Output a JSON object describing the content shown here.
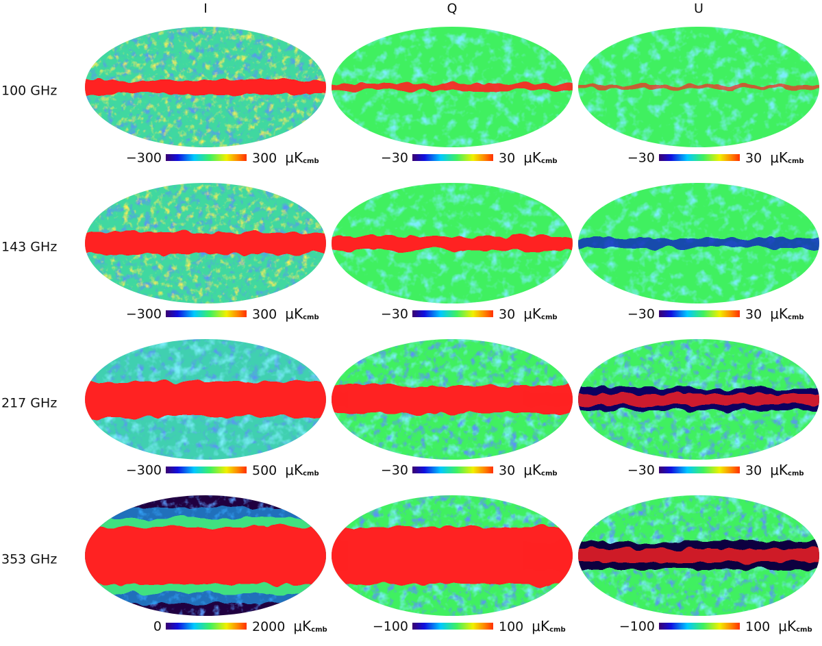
{
  "columns": [
    "I",
    "Q",
    "U"
  ],
  "unit": {
    "main": "μK",
    "sub": "cmb"
  },
  "rows": [
    {
      "label": "100 GHz",
      "colorbars": [
        {
          "min": "−300",
          "max": "300"
        },
        {
          "min": "−30",
          "max": "30"
        },
        {
          "min": "−30",
          "max": "30"
        }
      ]
    },
    {
      "label": "143 GHz",
      "colorbars": [
        {
          "min": "−300",
          "max": "300"
        },
        {
          "min": "−30",
          "max": "30"
        },
        {
          "min": "−30",
          "max": "30"
        }
      ]
    },
    {
      "label": "217 GHz",
      "colorbars": [
        {
          "min": "−300",
          "max": "500"
        },
        {
          "min": "−30",
          "max": "30"
        },
        {
          "min": "−30",
          "max": "30"
        }
      ]
    },
    {
      "label": "353 GHz",
      "colorbars": [
        {
          "min": "0",
          "max": "2000"
        },
        {
          "min": "−100",
          "max": "100"
        },
        {
          "min": "−100",
          "max": "100"
        }
      ]
    }
  ]
}
